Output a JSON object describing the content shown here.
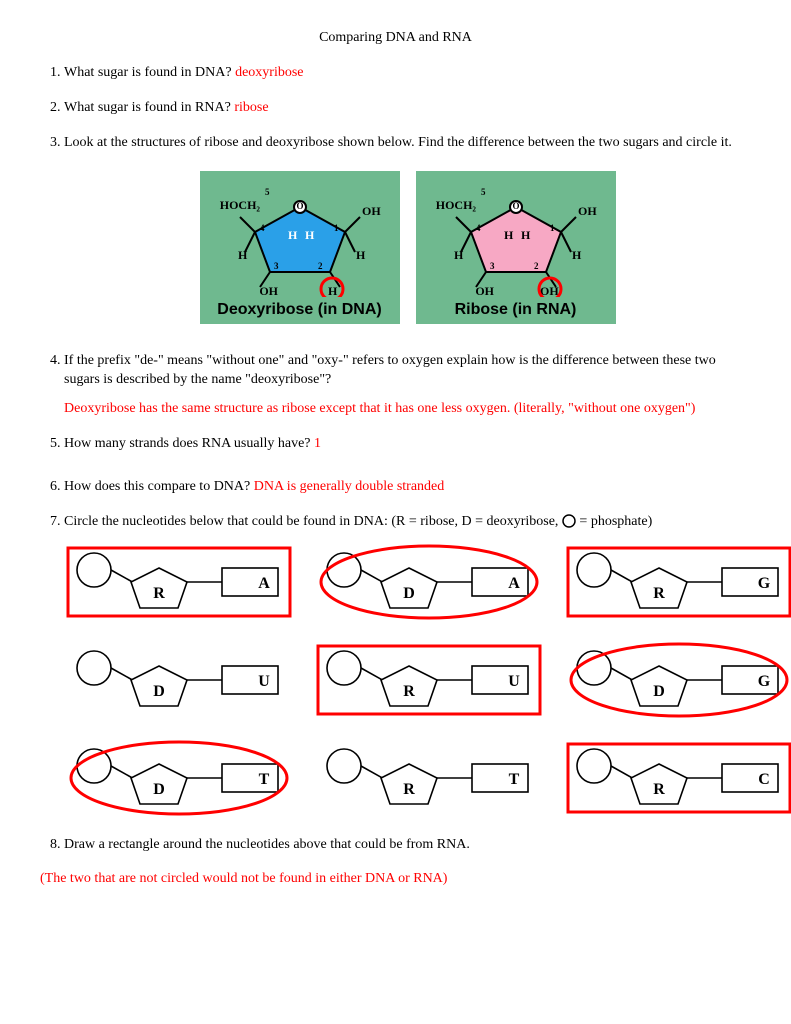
{
  "title": "Comparing DNA and RNA",
  "q1": {
    "text": "What sugar is found in DNA? ",
    "ans": "deoxyribose"
  },
  "q2": {
    "text": "What sugar is found in RNA? ",
    "ans": "ribose"
  },
  "q3": {
    "text": "Look at the structures of ribose and deoxyribose shown below.  Find the difference between the two sugars and circle it."
  },
  "sugars": {
    "bg": "#6fb98f",
    "deoxy": {
      "caption": "Deoxyribose (in DNA)",
      "fill": "#2aa0e8",
      "top_left": "HOCH₂",
      "top_right": "OH",
      "h_left": "H",
      "h_right": "H",
      "side_left": "H",
      "side_right": "H",
      "bot_left": "OH",
      "bot_right": "H",
      "num_top": "5",
      "num4": "4",
      "num1": "1",
      "num3": "3",
      "num2": "2"
    },
    "ribose": {
      "caption": "Ribose (in RNA)",
      "fill": "#f7a8c4",
      "top_left": "HOCH₂",
      "top_right": "OH",
      "h_left": "H",
      "h_right": "H",
      "side_left": "H",
      "side_right": "H",
      "bot_left": "OH",
      "bot_right": "OH",
      "num_top": "5",
      "num4": "4",
      "num1": "1",
      "num3": "3",
      "num2": "2"
    },
    "circle_color": "#ff0000"
  },
  "q4": {
    "text": "If the prefix \"de-\" means \"without one\" and \"oxy-\" refers to oxygen explain how is the difference between these two sugars is described by the name \"deoxyribose\"?",
    "ans": "Deoxyribose has the same structure as ribose except that it has one less oxygen. (literally, \"without one oxygen\")"
  },
  "q5": {
    "text": "How many strands does RNA usually have? ",
    "ans": "1"
  },
  "q6": {
    "text": "How does this compare to DNA? ",
    "ans": "DNA is generally double stranded"
  },
  "q7": {
    "text": "Circle the nucleotides below that could be found in DNA:  (R = ribose, D = deoxyribose, ",
    "legend": " = phosphate)"
  },
  "nucleotides": [
    {
      "sugar": "R",
      "base": "A",
      "circled": false,
      "boxed": true
    },
    {
      "sugar": "D",
      "base": "A",
      "circled": true,
      "boxed": false
    },
    {
      "sugar": "R",
      "base": "G",
      "circled": false,
      "boxed": true
    },
    {
      "sugar": "D",
      "base": "U",
      "circled": false,
      "boxed": false
    },
    {
      "sugar": "R",
      "base": "U",
      "circled": false,
      "boxed": true
    },
    {
      "sugar": "D",
      "base": "G",
      "circled": true,
      "boxed": false
    },
    {
      "sugar": "D",
      "base": "T",
      "circled": true,
      "boxed": false
    },
    {
      "sugar": "R",
      "base": "T",
      "circled": false,
      "boxed": false
    },
    {
      "sugar": "R",
      "base": "C",
      "circled": false,
      "boxed": true
    }
  ],
  "mark_color": "#ff0000",
  "q8": {
    "text": "Draw a rectangle around the nucleotides above that could be from RNA."
  },
  "footer_ans": "(The two that are not circled would not be found in either DNA or RNA)"
}
